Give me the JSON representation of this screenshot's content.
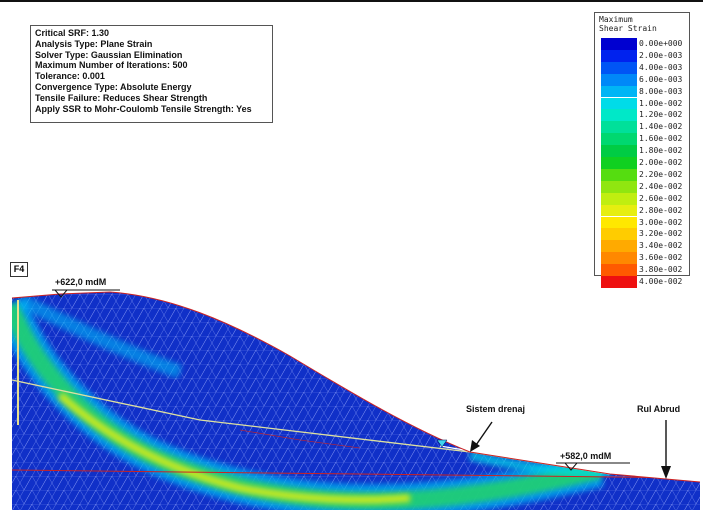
{
  "info_box": {
    "lines": [
      "Critical SRF: 1.30",
      "Analysis Type: Plane Strain",
      "Solver Type: Gaussian Elimination",
      "Maximum Number of Iterations: 500",
      "Tolerance: 0.001",
      "Convergence Type: Absolute Energy",
      "Tensile Failure: Reduces Shear Strength",
      "Apply SSR to Mohr-Coulomb Tensile Strength: Yes"
    ]
  },
  "legend": {
    "title_line1": "Maximum",
    "title_line2": "Shear Strain",
    "entries": [
      {
        "label": "0.00e+000",
        "color": "#0000d0"
      },
      {
        "label": "2.00e-003",
        "color": "#0022ee"
      },
      {
        "label": "4.00e-003",
        "color": "#0055f5"
      },
      {
        "label": "6.00e-003",
        "color": "#0088f8"
      },
      {
        "label": "8.00e-003",
        "color": "#00b5f5"
      },
      {
        "label": "1.00e-002",
        "color": "#00dce8"
      },
      {
        "label": "1.20e-002",
        "color": "#00e8c8"
      },
      {
        "label": "1.40e-002",
        "color": "#00e09a"
      },
      {
        "label": "1.60e-002",
        "color": "#00d870"
      },
      {
        "label": "1.80e-002",
        "color": "#00cc44"
      },
      {
        "label": "2.00e-002",
        "color": "#10d020"
      },
      {
        "label": "2.20e-002",
        "color": "#55dd10"
      },
      {
        "label": "2.40e-002",
        "color": "#90e610"
      },
      {
        "label": "2.60e-002",
        "color": "#c0ee10"
      },
      {
        "label": "2.80e-002",
        "color": "#e6ee10"
      },
      {
        "label": "3.00e-002",
        "color": "#ffe800"
      },
      {
        "label": "3.20e-002",
        "color": "#ffcc00"
      },
      {
        "label": "3.40e-002",
        "color": "#ffaa00"
      },
      {
        "label": "3.60e-002",
        "color": "#ff8800"
      },
      {
        "label": "3.80e-002",
        "color": "#ff5a00"
      },
      {
        "label": "4.00e-002",
        "color": "#ee1010"
      }
    ]
  },
  "model": {
    "section_tag": "F4",
    "crest_elevation": "+622,0 mdM",
    "toe_elevation": "+582,0 mdM",
    "drain_label": "Sistem drenaj",
    "river_label": "Rul Abrud",
    "colors": {
      "background_mesh": "#1030c8",
      "mesh_line": "#9fb0ff",
      "band_outer": "#00b5f5",
      "band_inner": "#20d070",
      "band_core": "#e6ee10",
      "boundary": "#cc2222"
    }
  }
}
